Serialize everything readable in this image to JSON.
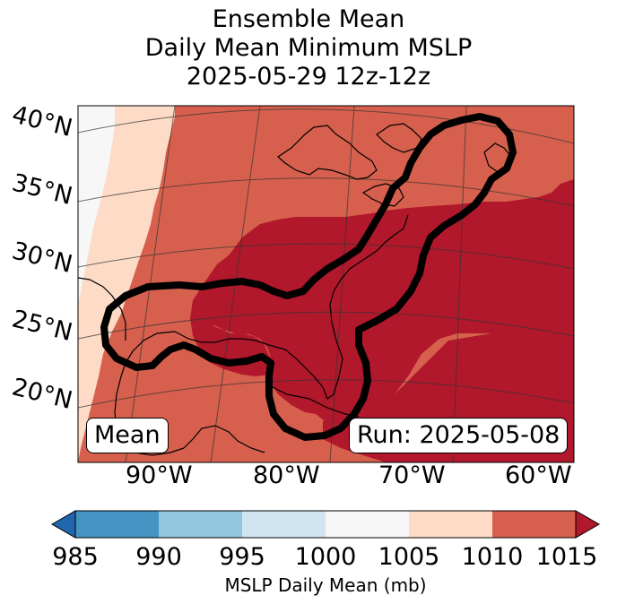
{
  "title": {
    "line1": "Ensemble Mean",
    "line2": "Daily Mean Minimum MSLP",
    "line3": "2025-05-29 12z-12z"
  },
  "latitude_labels": [
    "40°N",
    "35°N",
    "30°N",
    "25°N",
    "20°N"
  ],
  "longitude_labels": [
    "90°W",
    "80°W",
    "70°W",
    "60°W"
  ],
  "mean_label": "Mean",
  "run_label": "Run: 2025-05-08",
  "colorbar": {
    "ticks": [
      "985",
      "990",
      "995",
      "1000",
      "1005",
      "1010",
      "1015"
    ],
    "label": "MSLP Daily Mean (mb)",
    "colors": [
      "#2166ac",
      "#4393c3",
      "#92c5de",
      "#d1e5f0",
      "#f7f7f7",
      "#fddbc7",
      "#d6604d",
      "#b2182b"
    ]
  },
  "field_colors": {
    "lt_1005": "#f7f7f7",
    "1005_1010": "#fddbc7",
    "1010_1015": "#d6604d",
    "gt_1015": "#b2182b"
  }
}
